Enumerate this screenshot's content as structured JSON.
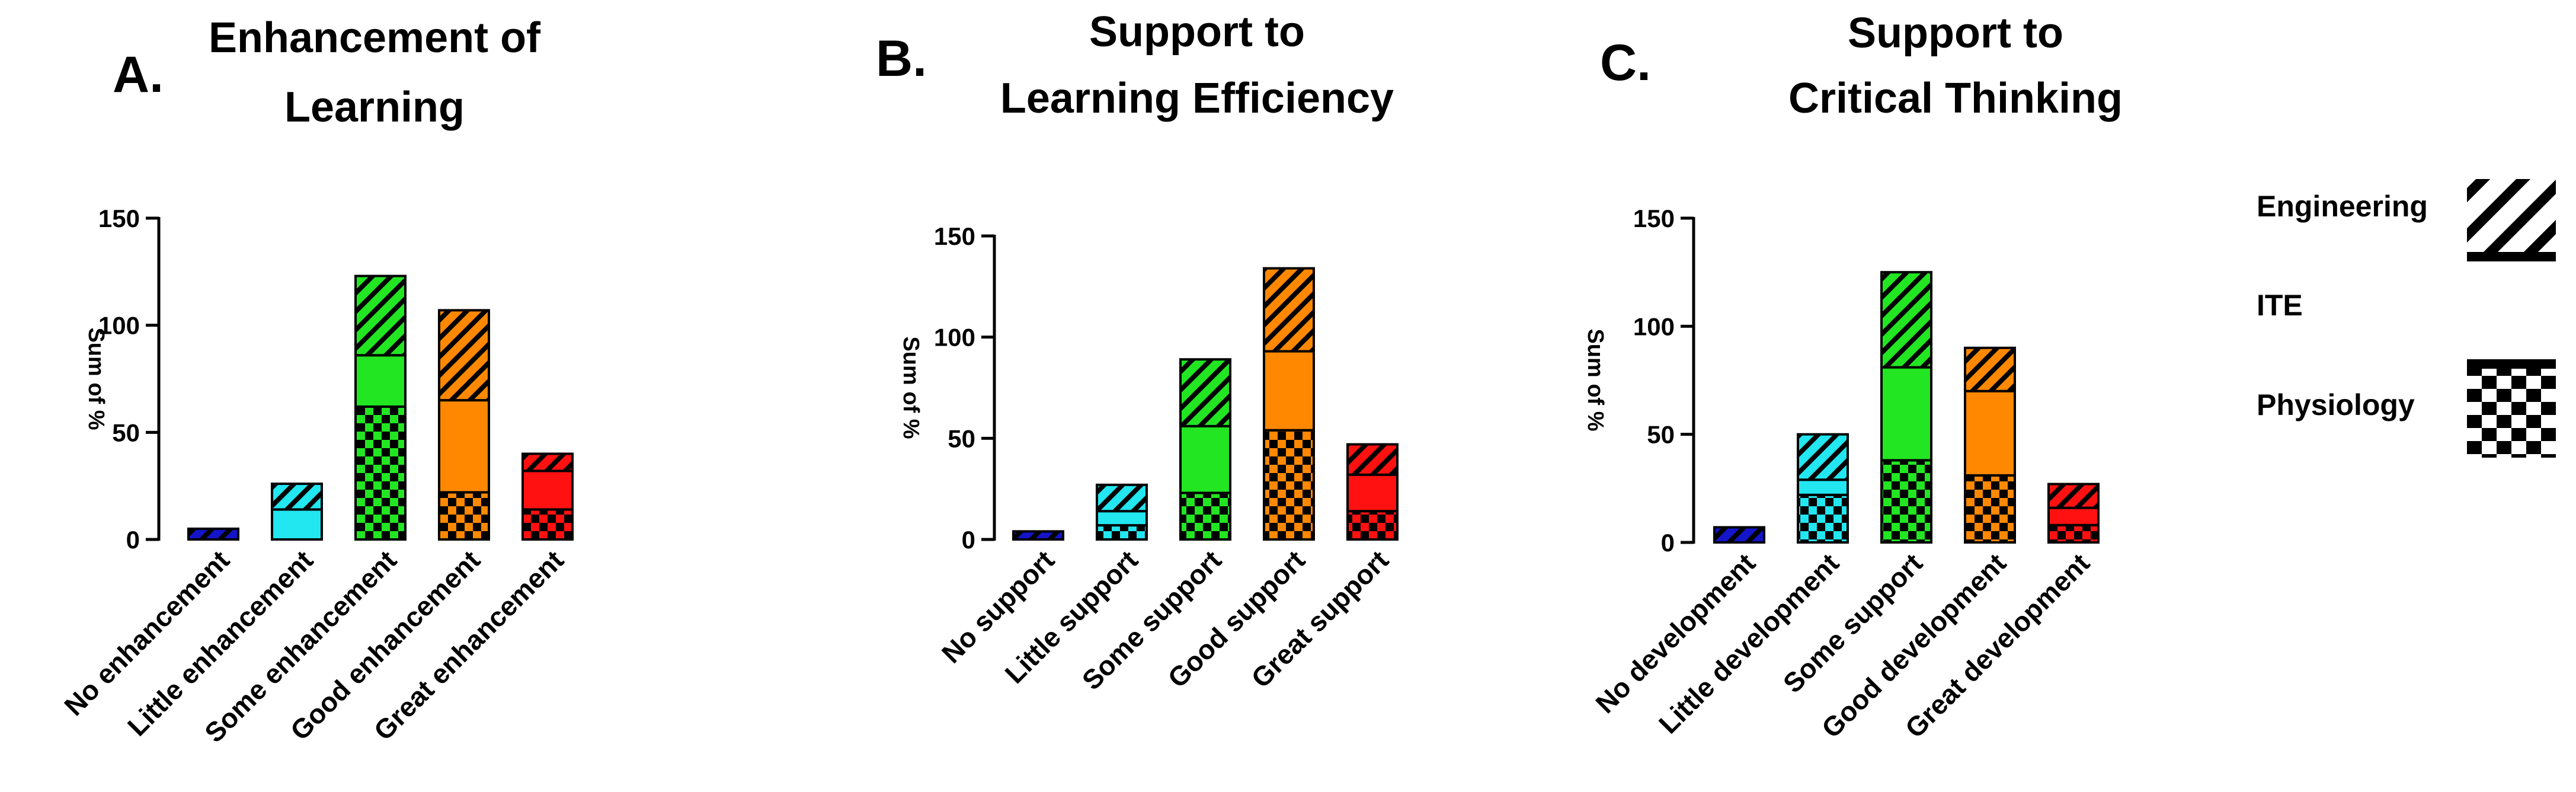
{
  "colors": {
    "no": "#1414c8",
    "little": "#22e6f0",
    "some": "#22e622",
    "good": "#ff8800",
    "great": "#ff1111"
  },
  "legend": {
    "engineering": "Engineering",
    "ite": "ITE",
    "physiology": "Physiology"
  },
  "chart_data": [
    {
      "type": "bar",
      "stacked": true,
      "panel_letter": "A.",
      "title": [
        "Enhancement of",
        "Learning"
      ],
      "ylabel": "Sum of %",
      "ylim": [
        0,
        150
      ],
      "yticks": [
        0,
        50,
        100,
        150
      ],
      "categories": [
        "No enhancement",
        "Little enhancement",
        "Some enhancement",
        "Good enhancement",
        "Great enhancement"
      ],
      "series": [
        {
          "name": "Physiology",
          "values": [
            0,
            0,
            62,
            22,
            14
          ]
        },
        {
          "name": "ITE",
          "values": [
            0,
            14,
            24,
            43,
            18
          ]
        },
        {
          "name": "Engineering",
          "values": [
            5,
            12,
            37,
            42,
            8
          ]
        }
      ]
    },
    {
      "type": "bar",
      "stacked": true,
      "panel_letter": "B.",
      "title": [
        "Support to",
        "Learning Efficiency"
      ],
      "ylabel": "Sum of %",
      "ylim": [
        0,
        150
      ],
      "yticks": [
        0,
        50,
        100,
        150
      ],
      "categories": [
        "No support",
        "Little support",
        "Some support",
        "Good support",
        "Great support"
      ],
      "series": [
        {
          "name": "Physiology",
          "values": [
            0,
            7,
            23,
            54,
            14
          ]
        },
        {
          "name": "ITE",
          "values": [
            0,
            7,
            33,
            39,
            18
          ]
        },
        {
          "name": "Engineering",
          "values": [
            4,
            13,
            33,
            41,
            15
          ]
        }
      ]
    },
    {
      "type": "bar",
      "stacked": true,
      "panel_letter": "C.",
      "title": [
        "Support to",
        "Critical Thinking"
      ],
      "ylabel": "Sum of %",
      "ylim": [
        0,
        150
      ],
      "yticks": [
        0,
        50,
        100,
        150
      ],
      "categories": [
        "No development",
        "Little development",
        "Some support",
        "Good development",
        "Great development"
      ],
      "series": [
        {
          "name": "Physiology",
          "values": [
            0,
            22,
            38,
            31,
            8
          ]
        },
        {
          "name": "ITE",
          "values": [
            0,
            7,
            43,
            39,
            8
          ]
        },
        {
          "name": "Engineering",
          "values": [
            7,
            21,
            44,
            20,
            11
          ]
        }
      ]
    }
  ]
}
